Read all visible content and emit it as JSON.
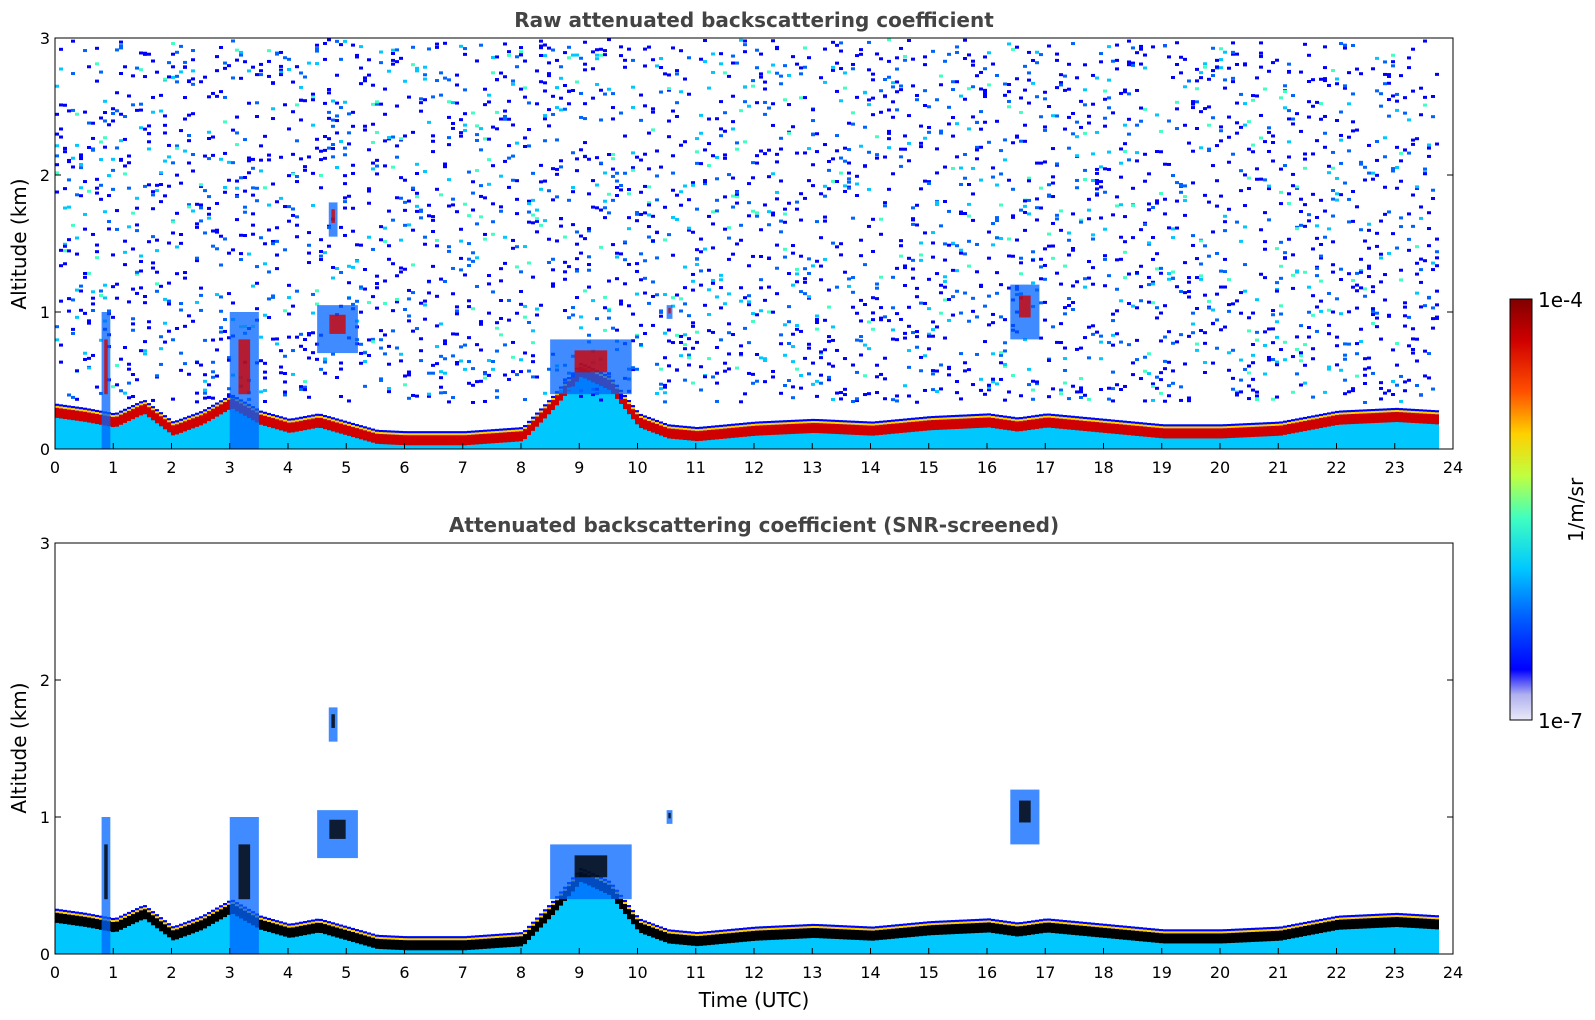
{
  "chart_data": [
    {
      "type": "heatmap",
      "title": "Raw attenuated backscattering coefficient",
      "xlabel": "",
      "ylabel": "Altitude (km)",
      "xlim": [
        0,
        24
      ],
      "ylim": [
        0,
        3
      ],
      "xticks": [
        "0",
        "1",
        "2",
        "3",
        "4",
        "5",
        "6",
        "7",
        "8",
        "9",
        "10",
        "11",
        "12",
        "13",
        "14",
        "15",
        "16",
        "17",
        "18",
        "19",
        "20",
        "21",
        "22",
        "23",
        "24"
      ],
      "yticks": [
        "0",
        "1",
        "2",
        "3"
      ],
      "data_extent_x": [
        0,
        23.8
      ],
      "boundary_layer_altitude_km": {
        "time": [
          0,
          0.5,
          1,
          1.5,
          2,
          2.5,
          3,
          3.5,
          4,
          4.5,
          5,
          5.5,
          6,
          7,
          8,
          8.5,
          9,
          9.5,
          10,
          10.5,
          11,
          12,
          13,
          14,
          15,
          16,
          16.5,
          17,
          18,
          19,
          20,
          21,
          22,
          23,
          23.8
        ],
        "value": [
          0.25,
          0.22,
          0.18,
          0.28,
          0.12,
          0.2,
          0.32,
          0.2,
          0.14,
          0.18,
          0.12,
          0.06,
          0.05,
          0.05,
          0.08,
          0.3,
          0.55,
          0.45,
          0.18,
          0.1,
          0.08,
          0.12,
          0.14,
          0.12,
          0.16,
          0.18,
          0.15,
          0.18,
          0.14,
          0.1,
          0.1,
          0.12,
          0.2,
          0.22,
          0.2
        ]
      },
      "cloud_features": [
        {
          "t0": 0.8,
          "t1": 0.95,
          "z0": 0.0,
          "z1": 1.0
        },
        {
          "t0": 3.0,
          "t1": 3.5,
          "z0": 0.0,
          "z1": 1.0
        },
        {
          "t0": 4.5,
          "t1": 5.2,
          "z0": 0.7,
          "z1": 1.05
        },
        {
          "t0": 4.7,
          "t1": 4.85,
          "z0": 1.55,
          "z1": 1.8
        },
        {
          "t0": 8.5,
          "t1": 9.9,
          "z0": 0.4,
          "z1": 0.8
        },
        {
          "t0": 10.5,
          "t1": 10.6,
          "z0": 0.95,
          "z1": 1.05
        },
        {
          "t0": 16.4,
          "t1": 16.9,
          "z0": 0.8,
          "z1": 1.2
        }
      ]
    },
    {
      "type": "heatmap",
      "title": "Attenuated backscattering coefficient (SNR-screened)",
      "xlabel": "Time (UTC)",
      "ylabel": "Altitude (km)",
      "xlim": [
        0,
        24
      ],
      "ylim": [
        0,
        3
      ],
      "xticks": [
        "0",
        "1",
        "2",
        "3",
        "4",
        "5",
        "6",
        "7",
        "8",
        "9",
        "10",
        "11",
        "12",
        "13",
        "14",
        "15",
        "16",
        "17",
        "18",
        "19",
        "20",
        "21",
        "22",
        "23",
        "24"
      ],
      "yticks": [
        "0",
        "1",
        "2",
        "3"
      ],
      "data_extent_x": [
        0,
        23.8
      ]
    }
  ],
  "colorbar": {
    "label": "1/m/sr",
    "max_label": "1e-4",
    "min_label": "1e-7",
    "scale": "log",
    "range": [
      1e-07,
      0.0001
    ],
    "colormap": "jet-with-white-low",
    "colors": [
      "#eaeaf8",
      "#b0b0f0",
      "#0000ff",
      "#0064ff",
      "#00c8ff",
      "#40ffc0",
      "#c0ff40",
      "#ffd000",
      "#ff5000",
      "#d00000",
      "#800000"
    ]
  }
}
